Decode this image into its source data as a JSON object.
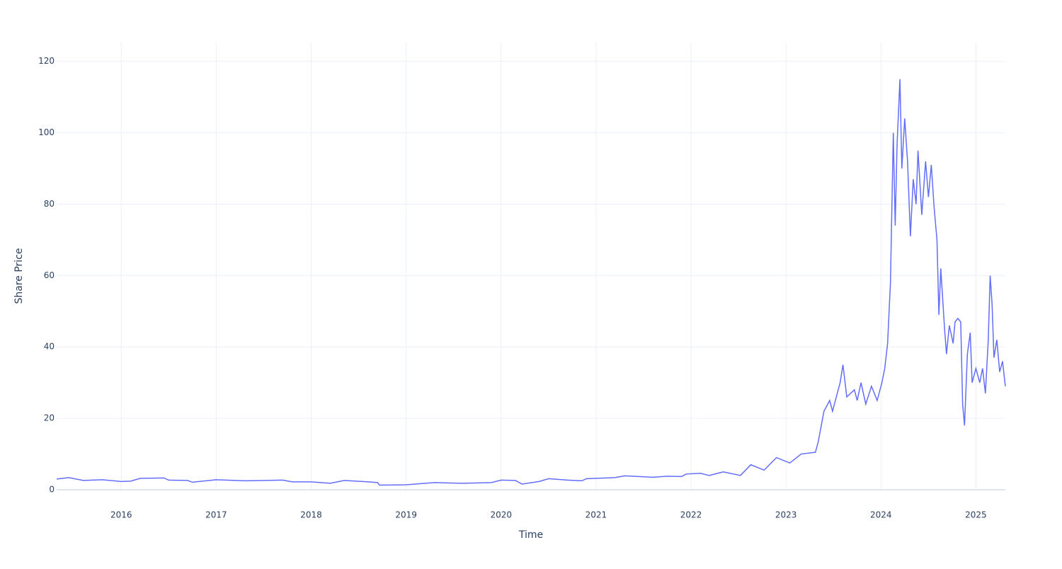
{
  "chart_data": {
    "type": "line",
    "x_label": "Time",
    "y_label": "Share Price",
    "color": "#636efa",
    "grid": true,
    "xlim": [
      2015.32,
      2025.31
    ],
    "xticks": [
      2016,
      2017,
      2018,
      2019,
      2020,
      2021,
      2022,
      2023,
      2024,
      2025
    ],
    "ylim": [
      0,
      125.3
    ],
    "yticks": [
      0,
      20,
      40,
      60,
      80,
      100,
      120
    ],
    "x": [
      2015.32,
      2015.45,
      2015.6,
      2015.8,
      2016.0,
      2016.1,
      2016.2,
      2016.45,
      2016.5,
      2016.7,
      2016.75,
      2017.0,
      2017.3,
      2017.7,
      2017.8,
      2018.0,
      2018.2,
      2018.35,
      2018.6,
      2018.7,
      2018.72,
      2019.0,
      2019.3,
      2019.6,
      2019.9,
      2020.0,
      2020.15,
      2020.22,
      2020.4,
      2020.5,
      2020.7,
      2020.85,
      2020.9,
      2021.2,
      2021.3,
      2021.6,
      2021.75,
      2021.9,
      2021.95,
      2022.1,
      2022.19,
      2022.34,
      2022.52,
      2022.63,
      2022.77,
      2022.9,
      2023.04,
      2023.16,
      2023.31,
      2023.34,
      2023.4,
      2023.46,
      2023.49,
      2023.57,
      2023.6,
      2023.64,
      2023.72,
      2023.75,
      2023.79,
      2023.84,
      2023.9,
      2023.96,
      2024.01,
      2024.04,
      2024.07,
      2024.1,
      2024.13,
      2024.15,
      2024.17,
      2024.2,
      2024.22,
      2024.25,
      2024.28,
      2024.31,
      2024.34,
      2024.37,
      2024.39,
      2024.43,
      2024.47,
      2024.5,
      2024.53,
      2024.56,
      2024.59,
      2024.61,
      2024.63,
      2024.67,
      2024.69,
      2024.72,
      2024.76,
      2024.78,
      2024.81,
      2024.84,
      2024.86,
      2024.88,
      2024.91,
      2024.94,
      2024.96,
      2025.0,
      2025.04,
      2025.07,
      2025.1,
      2025.13,
      2025.15,
      2025.17,
      2025.19,
      2025.22,
      2025.25,
      2025.28,
      2025.31
    ],
    "values": [
      3,
      3.4,
      2.6,
      2.8,
      2.3,
      2.4,
      3.2,
      3.3,
      2.7,
      2.6,
      2.1,
      2.8,
      2.5,
      2.7,
      2.2,
      2.2,
      1.8,
      2.6,
      2.2,
      2.0,
      1.3,
      1.4,
      2.0,
      1.8,
      2.0,
      2.7,
      2.6,
      1.6,
      2.3,
      3.1,
      2.7,
      2.5,
      3.1,
      3.4,
      3.9,
      3.5,
      3.8,
      3.7,
      4.4,
      4.6,
      4.0,
      5,
      4,
      7,
      5.5,
      9,
      7.5,
      10,
      10.5,
      13.5,
      22,
      25,
      22,
      30,
      35,
      26,
      28,
      25,
      30,
      24,
      29,
      25,
      30,
      34,
      41,
      58,
      100,
      74,
      97,
      115,
      90,
      104,
      92,
      71,
      87,
      80,
      95,
      77,
      92,
      82,
      91,
      79,
      70,
      49,
      62,
      45,
      38,
      46,
      41,
      47,
      48,
      47,
      24,
      18,
      38,
      44,
      30,
      34,
      30,
      34,
      27,
      42,
      60,
      52,
      37,
      42,
      33,
      36,
      29
    ]
  }
}
